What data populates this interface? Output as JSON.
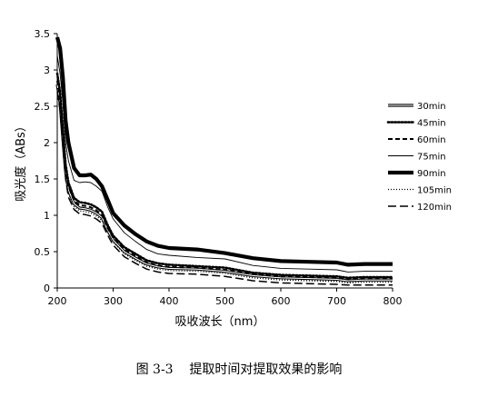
{
  "chart_data": {
    "type": "line",
    "xlabel": "吸收波长（nm）",
    "ylabel": "吸光度（ABs）",
    "xlim": [
      200,
      800
    ],
    "ylim": [
      0,
      3.5
    ],
    "x_ticks": [
      "200",
      "300",
      "400",
      "500",
      "600",
      "700",
      "800"
    ],
    "y_ticks": [
      "0",
      "0.5",
      "1",
      "1.5",
      "2",
      "2.5",
      "3",
      "3.5"
    ],
    "grid": false,
    "legend_position": "right",
    "x": [
      200,
      205,
      210,
      215,
      220,
      230,
      240,
      250,
      260,
      270,
      280,
      290,
      300,
      320,
      340,
      360,
      380,
      400,
      450,
      500,
      550,
      600,
      650,
      700,
      720,
      750,
      800
    ],
    "series": [
      {
        "name": "30min",
        "style": "double",
        "values": [
          2.8,
          2.55,
          2.05,
          1.6,
          1.35,
          1.16,
          1.1,
          1.09,
          1.07,
          1.03,
          0.97,
          0.8,
          0.66,
          0.5,
          0.41,
          0.33,
          0.29,
          0.27,
          0.26,
          0.23,
          0.17,
          0.14,
          0.13,
          0.12,
          0.1,
          0.11,
          0.11
        ]
      },
      {
        "name": "45min",
        "style": "dotted-heavy",
        "values": [
          2.95,
          2.7,
          2.2,
          1.7,
          1.45,
          1.24,
          1.18,
          1.17,
          1.15,
          1.11,
          1.05,
          0.87,
          0.72,
          0.56,
          0.47,
          0.38,
          0.34,
          0.32,
          0.3,
          0.28,
          0.21,
          0.18,
          0.17,
          0.16,
          0.14,
          0.15,
          0.15
        ]
      },
      {
        "name": "60min",
        "style": "dashed",
        "values": [
          2.85,
          2.6,
          2.1,
          1.65,
          1.4,
          1.2,
          1.14,
          1.13,
          1.11,
          1.07,
          1.0,
          0.83,
          0.69,
          0.53,
          0.44,
          0.35,
          0.31,
          0.29,
          0.28,
          0.25,
          0.19,
          0.16,
          0.15,
          0.14,
          0.12,
          0.13,
          0.13
        ]
      },
      {
        "name": "75min",
        "style": "thin",
        "values": [
          3.2,
          2.95,
          2.55,
          2.0,
          1.75,
          1.48,
          1.45,
          1.46,
          1.45,
          1.4,
          1.33,
          1.12,
          0.95,
          0.76,
          0.64,
          0.53,
          0.47,
          0.45,
          0.42,
          0.4,
          0.31,
          0.27,
          0.26,
          0.25,
          0.22,
          0.23,
          0.23
        ]
      },
      {
        "name": "90min",
        "style": "thick",
        "values": [
          3.45,
          3.3,
          2.9,
          2.3,
          2.0,
          1.65,
          1.55,
          1.55,
          1.56,
          1.5,
          1.4,
          1.22,
          1.03,
          0.86,
          0.74,
          0.64,
          0.58,
          0.55,
          0.53,
          0.48,
          0.41,
          0.37,
          0.36,
          0.35,
          0.32,
          0.33,
          0.33
        ]
      },
      {
        "name": "105min",
        "style": "dotted",
        "values": [
          2.75,
          2.5,
          2.0,
          1.55,
          1.3,
          1.12,
          1.06,
          1.05,
          1.03,
          0.99,
          0.93,
          0.77,
          0.63,
          0.47,
          0.38,
          0.3,
          0.26,
          0.24,
          0.23,
          0.2,
          0.14,
          0.11,
          0.1,
          0.09,
          0.07,
          0.08,
          0.08
        ]
      },
      {
        "name": "120min",
        "style": "long-dash",
        "values": [
          2.7,
          2.45,
          1.95,
          1.5,
          1.25,
          1.08,
          1.02,
          1.01,
          0.99,
          0.95,
          0.89,
          0.73,
          0.59,
          0.43,
          0.34,
          0.26,
          0.22,
          0.2,
          0.19,
          0.16,
          0.1,
          0.07,
          0.06,
          0.05,
          0.04,
          0.04,
          0.04
        ]
      }
    ]
  },
  "caption": "图 3-3    提取时间对提取效果的影响"
}
